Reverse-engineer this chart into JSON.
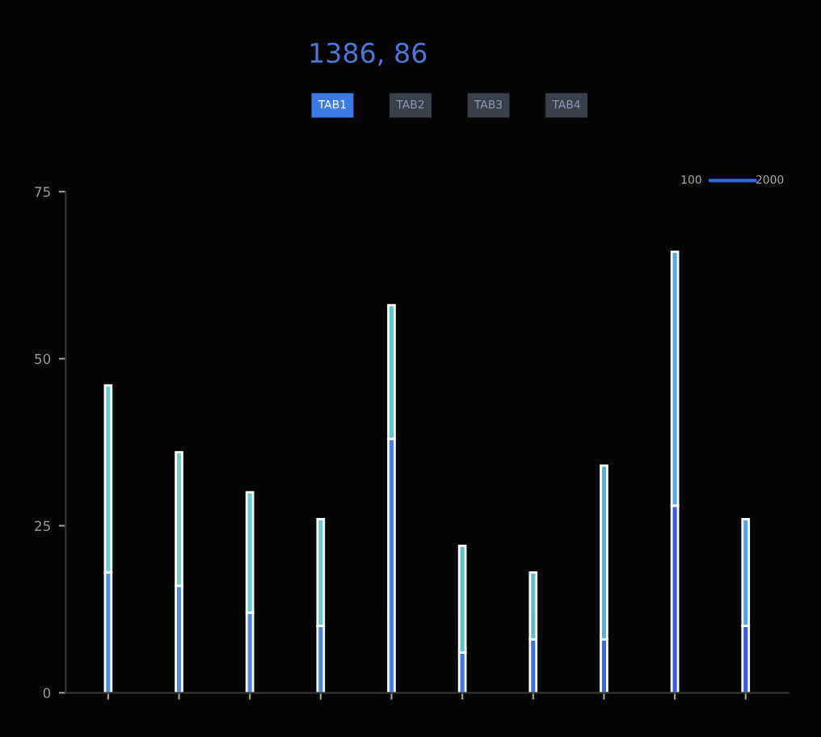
{
  "chart_data": {
    "type": "bar",
    "stacked": true,
    "categories": [
      null,
      null,
      null,
      null,
      null,
      null,
      null,
      null,
      null,
      null
    ],
    "series": [
      {
        "values": [
          18,
          16,
          12,
          10,
          38,
          6,
          8,
          8,
          28,
          10
        ],
        "colors": [
          "#4a90e2",
          "#4a8ee2",
          "#4a8ae2",
          "#4686e2",
          "#4480e2",
          "#4078e2",
          "#3c6ee2",
          "#3a66e2",
          "#385ee2",
          "#3658e2"
        ]
      },
      {
        "values": [
          28,
          20,
          18,
          16,
          20,
          16,
          10,
          26,
          38,
          16
        ],
        "colors": [
          "#66d4c8",
          "#66d2c8",
          "#66d0ca",
          "#66cccc",
          "#62c6d0",
          "#5ec0d4",
          "#5cbad6",
          "#58b2d8",
          "#56aadc",
          "#54a4de"
        ]
      }
    ],
    "ylim": [
      0,
      75
    ],
    "yticks": [
      0,
      25,
      50,
      75
    ],
    "grid": false,
    "annotations": [
      "1386, 86",
      "TAB1",
      "TAB2",
      "TAB3",
      "TAB4",
      "100",
      "2000"
    ]
  }
}
